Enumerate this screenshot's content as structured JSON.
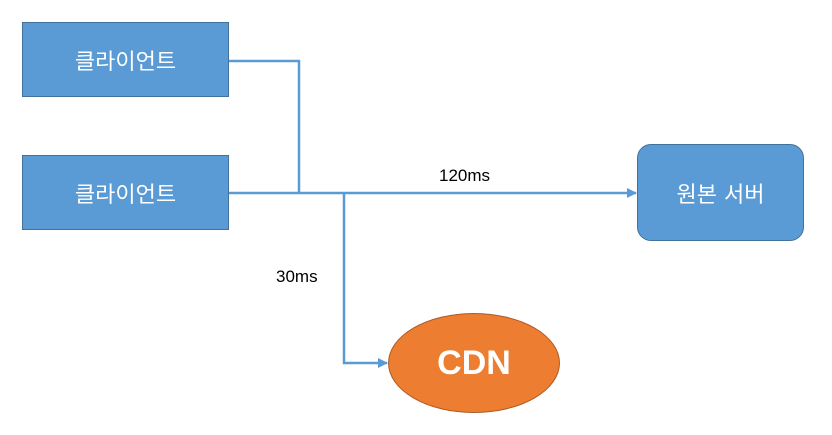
{
  "nodes": {
    "client_1": "클라이언트",
    "client_2": "클라이언트",
    "origin_server": "원본 서버",
    "cdn": "CDN"
  },
  "edge_labels": {
    "to_origin": "120ms",
    "to_cdn": "30ms"
  },
  "colors": {
    "client_fill": "#5b9bd5",
    "server_fill": "#5b9bd5",
    "cdn_fill": "#ed7d31",
    "connector": "#5b9bd5"
  }
}
